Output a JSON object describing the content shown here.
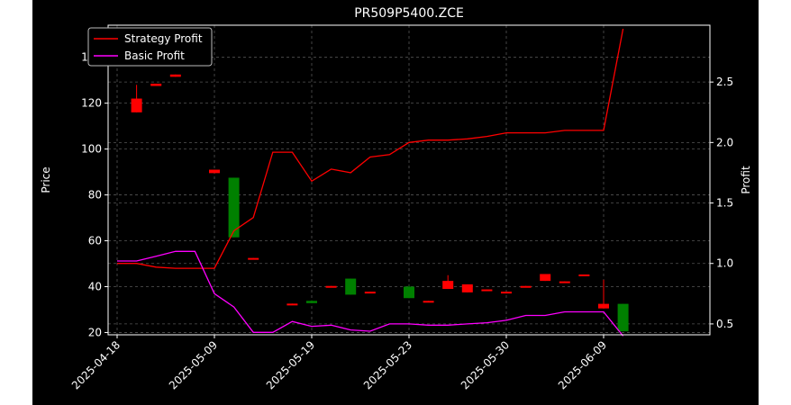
{
  "chart_data": {
    "type": "candlestick",
    "title": "PR509P5400.ZCE",
    "xlabel": "",
    "ylabel_left": "Price",
    "ylabel_right": "Profit",
    "ylim_left": [
      19,
      154
    ],
    "ylim_right": [
      0.41,
      2.97
    ],
    "yticks_left": [
      20,
      40,
      60,
      80,
      100,
      120,
      140
    ],
    "yticks_right": [
      0.5,
      1.0,
      1.5,
      2.0,
      2.5
    ],
    "xtick_labels": [
      "2025-04-18",
      "2025-05-09",
      "2025-05-19",
      "2025-05-23",
      "2025-05-30",
      "2025-06-09"
    ],
    "xtick_positions": [
      0,
      5,
      10,
      15,
      20,
      25
    ],
    "grid": true,
    "legend_position": "top-left",
    "colors": {
      "background": "#000000",
      "figure": "#ffffff",
      "text": "#ffffff",
      "grid": "#555555",
      "up": "#008000",
      "down": "#ff0000",
      "strategy": "#ff0000",
      "basic": "#ff00ff"
    },
    "candles": [
      {
        "i": 0,
        "open": 151,
        "high": 153,
        "low": 148,
        "close": 148
      },
      {
        "i": 1,
        "open": 122,
        "high": 128,
        "low": 116,
        "close": 116
      },
      {
        "i": 2,
        "open": 128.5,
        "high": 128.5,
        "low": 127.5,
        "close": 127.5
      },
      {
        "i": 3,
        "open": 132.5,
        "high": 132.5,
        "low": 131.5,
        "close": 131.5
      },
      {
        "i": 5,
        "open": 91,
        "high": 91,
        "low": 89.5,
        "close": 89.5
      },
      {
        "i": 6,
        "open": 61.5,
        "high": 87.5,
        "low": 61.5,
        "close": 87.5
      },
      {
        "i": 7,
        "open": 52.5,
        "high": 52.5,
        "low": 51.8,
        "close": 51.8
      },
      {
        "i": 9,
        "open": 32.6,
        "high": 32.6,
        "low": 32.0,
        "close": 32.0
      },
      {
        "i": 10,
        "open": 32.8,
        "high": 34.0,
        "low": 32.8,
        "close": 33.8
      },
      {
        "i": 11,
        "open": 40.3,
        "high": 40.3,
        "low": 39.7,
        "close": 39.7
      },
      {
        "i": 12,
        "open": 36.5,
        "high": 43.5,
        "low": 36.5,
        "close": 43.5
      },
      {
        "i": 13,
        "open": 37.8,
        "high": 37.8,
        "low": 37.2,
        "close": 37.2
      },
      {
        "i": 15,
        "open": 35.0,
        "high": 40.5,
        "low": 35.0,
        "close": 40.0
      },
      {
        "i": 16,
        "open": 33.8,
        "high": 33.8,
        "low": 33.2,
        "close": 33.2
      },
      {
        "i": 17,
        "open": 42.5,
        "high": 45.0,
        "low": 39.0,
        "close": 39.0
      },
      {
        "i": 18,
        "open": 41.0,
        "high": 41.0,
        "low": 37.5,
        "close": 37.5
      },
      {
        "i": 19,
        "open": 38.8,
        "high": 38.8,
        "low": 38.2,
        "close": 38.2
      },
      {
        "i": 20,
        "open": 37.8,
        "high": 37.8,
        "low": 37.2,
        "close": 37.2
      },
      {
        "i": 21,
        "open": 40.3,
        "high": 40.3,
        "low": 39.7,
        "close": 39.7
      },
      {
        "i": 22,
        "open": 45.5,
        "high": 45.5,
        "low": 42.5,
        "close": 42.5
      },
      {
        "i": 23,
        "open": 42.3,
        "high": 42.3,
        "low": 41.7,
        "close": 41.7
      },
      {
        "i": 24,
        "open": 45.3,
        "high": 45.3,
        "low": 44.7,
        "close": 44.7
      },
      {
        "i": 25,
        "open": 32.5,
        "high": 43.0,
        "low": 30.5,
        "close": 30.5
      },
      {
        "i": 26,
        "open": 20.5,
        "high": 32.5,
        "low": 20.5,
        "close": 32.5
      }
    ],
    "series": [
      {
        "name": "Strategy Profit",
        "x": [
          0,
          1,
          2,
          3,
          4,
          5,
          6,
          7,
          8,
          9,
          10,
          11,
          12,
          13,
          14,
          15,
          16,
          17,
          18,
          19,
          20,
          21,
          22,
          23,
          24,
          25,
          26
        ],
        "values": [
          1.0,
          1.0,
          0.97,
          0.96,
          0.96,
          0.96,
          1.27,
          1.38,
          1.92,
          1.92,
          1.68,
          1.78,
          1.75,
          1.88,
          1.9,
          2.0,
          2.02,
          2.02,
          2.03,
          2.05,
          2.08,
          2.08,
          2.08,
          2.1,
          2.1,
          2.1,
          2.94
        ]
      },
      {
        "name": "Basic Profit",
        "x": [
          0,
          1,
          2,
          3,
          4,
          5,
          6,
          7,
          8,
          9,
          10,
          11,
          12,
          13,
          14,
          15,
          16,
          17,
          18,
          19,
          20,
          21,
          22,
          23,
          24,
          25,
          26
        ],
        "values": [
          1.02,
          1.02,
          1.06,
          1.1,
          1.1,
          0.75,
          0.64,
          0.43,
          0.43,
          0.52,
          0.48,
          0.49,
          0.45,
          0.44,
          0.5,
          0.5,
          0.49,
          0.49,
          0.5,
          0.51,
          0.53,
          0.57,
          0.57,
          0.6,
          0.6,
          0.6,
          0.4
        ]
      }
    ]
  }
}
